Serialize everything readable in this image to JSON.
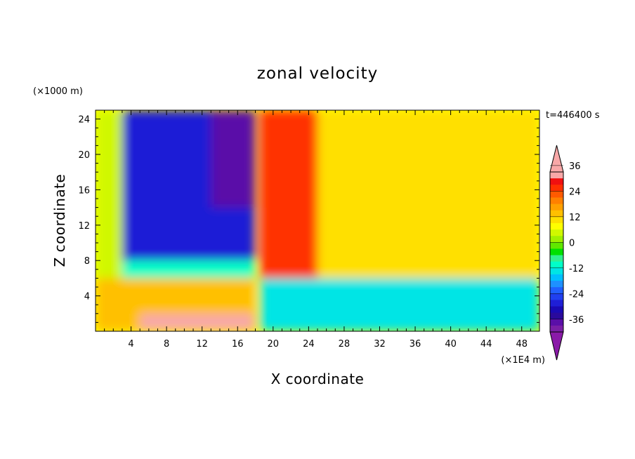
{
  "chart_data": {
    "type": "heatmap",
    "title": "zonal velocity",
    "xlabel": "X coordinate",
    "ylabel": "Z coordinate",
    "x_unit": "(×1E4 m)",
    "y_unit": "(×1000 m)",
    "time_label": "t=446400 s",
    "xlim": [
      0,
      50
    ],
    "ylim": [
      0,
      25
    ],
    "x_ticks": [
      4,
      8,
      12,
      16,
      20,
      24,
      28,
      32,
      36,
      40,
      44,
      48
    ],
    "x_tick_labels": [
      "4",
      "8",
      "12",
      "16",
      "20",
      "24",
      "28",
      "32",
      "36",
      "40",
      "44",
      "48"
    ],
    "y_ticks": [
      4,
      8,
      12,
      16,
      20,
      24
    ],
    "y_tick_labels": [
      "4",
      "8",
      "12",
      "16",
      "20",
      "24"
    ],
    "colorbar": {
      "levels": [
        -42,
        -39,
        -36,
        -33,
        -30,
        -27,
        -24,
        -21,
        -18,
        -15,
        -12,
        -9,
        -6,
        -3,
        0,
        3,
        6,
        9,
        12,
        15,
        18,
        21,
        24,
        27,
        30,
        33,
        36,
        39,
        42
      ],
      "labels": [
        "36",
        "24",
        "12",
        "0",
        "-12",
        "-24",
        "-36"
      ],
      "label_values": [
        36,
        24,
        12,
        0,
        -12,
        -24,
        -36
      ],
      "colors": [
        "#7a1fa6",
        "#5a0fa8",
        "#2a0a9c",
        "#1a0ab4",
        "#1f1fd6",
        "#2040f0",
        "#2060ff",
        "#1e90ff",
        "#00bfff",
        "#00e5e5",
        "#00ffc8",
        "#30f090",
        "#00e000",
        "#60e800",
        "#a0f000",
        "#d0f800",
        "#ffff00",
        "#ffe000",
        "#ffc000",
        "#ffa000",
        "#ff8000",
        "#ff5a00",
        "#ff3000",
        "#f01010",
        "#f8a8a8"
      ],
      "under_color": "#8a1aa8",
      "over_color": "#f8a8a8"
    },
    "regions": [
      {
        "x0": 0,
        "x1": 3,
        "z0": 6,
        "z1": 25,
        "value": 3
      },
      {
        "x0": 3,
        "x1": 18,
        "z0": 8,
        "z1": 25,
        "value": -30
      },
      {
        "x0": 13,
        "x1": 18,
        "z0": 14,
        "z1": 25,
        "value": -38
      },
      {
        "x0": 3,
        "x1": 18,
        "z0": 6,
        "z1": 8,
        "value": -12
      },
      {
        "x0": 0,
        "x1": 18,
        "z0": 0,
        "z1": 6,
        "value": 14
      },
      {
        "x0": 5,
        "x1": 18,
        "z0": 0,
        "z1": 2,
        "value": 32
      },
      {
        "x0": 18.5,
        "x1": 25,
        "z0": 6,
        "z1": 25,
        "value": 26
      },
      {
        "x0": 25,
        "x1": 50,
        "z0": 6,
        "z1": 25,
        "value": 10
      },
      {
        "x0": 18.5,
        "x1": 50,
        "z0": 0,
        "z1": 6,
        "value": -14
      }
    ]
  }
}
